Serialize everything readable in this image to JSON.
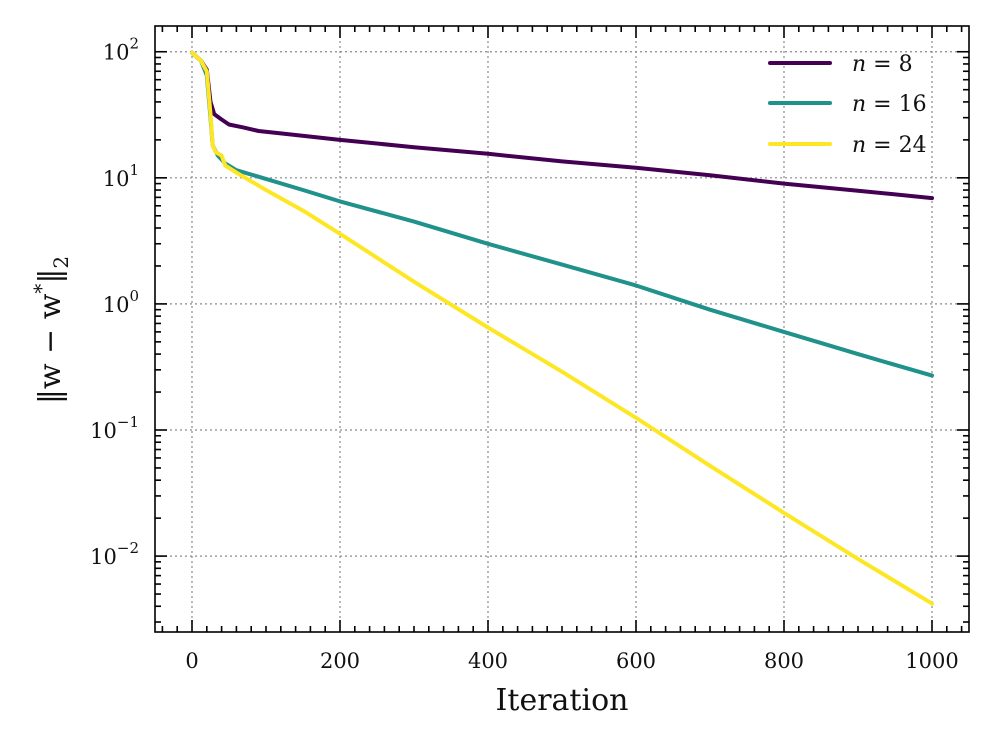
{
  "chart_data": {
    "type": "line",
    "title": "",
    "xlabel": "Iteration",
    "ylabel": "‖w − w*‖₂",
    "ylabel_parts": {
      "norm": "‖w − w",
      "star": "*",
      "close": "‖",
      "sub": "2"
    },
    "xscale": "linear",
    "yscale": "log",
    "xlim": [
      -50,
      1050
    ],
    "ylim": [
      0.0025,
      160
    ],
    "grid": true,
    "legend_position": "top-right",
    "x_ticks": [
      0,
      200,
      400,
      600,
      800,
      1000
    ],
    "x_tick_labels": [
      "0",
      "200",
      "400",
      "600",
      "800",
      "1000"
    ],
    "y_ticks": [
      {
        "value": 100,
        "base": "10",
        "exp": "2"
      },
      {
        "value": 10,
        "base": "10",
        "exp": "1"
      },
      {
        "value": 1,
        "base": "10",
        "exp": "0"
      },
      {
        "value": 0.1,
        "base": "10",
        "exp": "−1"
      },
      {
        "value": 0.01,
        "base": "10",
        "exp": "−2"
      }
    ],
    "series": [
      {
        "name": "n = 8",
        "label_var": "n",
        "label_eq": " = ",
        "label_val": "8",
        "color": "#440154",
        "points": [
          [
            0,
            98
          ],
          [
            12,
            85
          ],
          [
            20,
            72
          ],
          [
            25,
            40
          ],
          [
            30,
            32
          ],
          [
            40,
            29
          ],
          [
            50,
            26.5
          ],
          [
            70,
            25
          ],
          [
            90,
            23.5
          ],
          [
            120,
            22.5
          ],
          [
            200,
            20
          ],
          [
            300,
            17.5
          ],
          [
            400,
            15.5
          ],
          [
            500,
            13.5
          ],
          [
            600,
            12
          ],
          [
            700,
            10.5
          ],
          [
            800,
            9
          ],
          [
            900,
            7.9
          ],
          [
            1000,
            6.9
          ]
        ]
      },
      {
        "name": "n = 16",
        "label_var": "n",
        "label_eq": " = ",
        "label_val": "16",
        "color": "#21918c",
        "points": [
          [
            0,
            98
          ],
          [
            12,
            85
          ],
          [
            20,
            65
          ],
          [
            25,
            30
          ],
          [
            28,
            18
          ],
          [
            35,
            15
          ],
          [
            45,
            13
          ],
          [
            60,
            11.5
          ],
          [
            100,
            9.8
          ],
          [
            150,
            8
          ],
          [
            200,
            6.5
          ],
          [
            300,
            4.5
          ],
          [
            400,
            3.0
          ],
          [
            500,
            2.05
          ],
          [
            600,
            1.4
          ],
          [
            700,
            0.9
          ],
          [
            800,
            0.6
          ],
          [
            900,
            0.4
          ],
          [
            1000,
            0.27
          ]
        ]
      },
      {
        "name": "n = 24",
        "label_var": "n",
        "label_eq": " = ",
        "label_val": "24",
        "color": "#fde725",
        "points": [
          [
            0,
            98
          ],
          [
            12,
            85
          ],
          [
            20,
            70
          ],
          [
            25,
            32
          ],
          [
            28,
            18
          ],
          [
            32,
            16
          ],
          [
            40,
            15
          ],
          [
            45,
            12.5
          ],
          [
            60,
            11
          ],
          [
            100,
            8
          ],
          [
            150,
            5.5
          ],
          [
            200,
            3.6
          ],
          [
            300,
            1.5
          ],
          [
            400,
            0.65
          ],
          [
            500,
            0.29
          ],
          [
            600,
            0.125
          ],
          [
            700,
            0.052
          ],
          [
            800,
            0.022
          ],
          [
            900,
            0.0095
          ],
          [
            1000,
            0.0042
          ]
        ]
      }
    ]
  }
}
